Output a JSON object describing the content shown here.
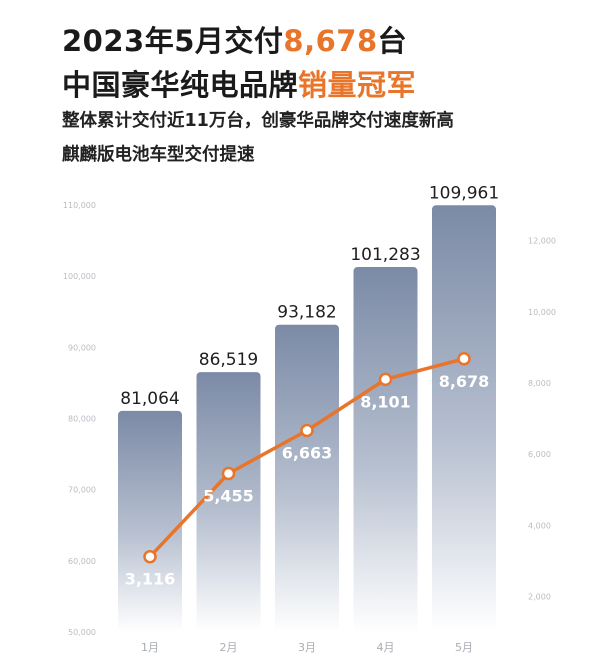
{
  "headline": {
    "line1_prefix": "2023年5月交付",
    "line1_accent": "8,678",
    "line1_suffix": "台",
    "line2_prefix": "中国豪华纯电品牌",
    "line2_accent": "销量冠军"
  },
  "subtitle": {
    "line1": "整体累计交付近11万台，创豪华品牌交付速度新高",
    "line2": "麒麟版电池车型交付提速"
  },
  "colors": {
    "accent": "#e8752a",
    "bar_top": "#7b8aa6",
    "bar_bottom": "#ffffff",
    "line": "#e8752a"
  },
  "chart_data": {
    "type": "bar",
    "categories": [
      "1月",
      "2月",
      "3月",
      "4月",
      "5月"
    ],
    "series": [
      {
        "values": [
          81064,
          86519,
          93182,
          101283,
          109961
        ],
        "labels": [
          "81,064",
          "86,519",
          "93,182",
          "101,283",
          "109,961"
        ],
        "axis": "left"
      },
      {
        "type": "line",
        "values": [
          3116,
          5455,
          6663,
          8101,
          8678
        ],
        "labels": [
          "3,116",
          "5,455",
          "6,663",
          "8,101",
          "8,678"
        ],
        "axis": "right"
      }
    ],
    "left_axis": {
      "ylim": [
        50000,
        110000
      ],
      "ticks": [
        50000,
        60000,
        70000,
        80000,
        90000,
        100000,
        110000
      ],
      "tick_labels": [
        "50,000",
        "60,000",
        "70,000",
        "80,000",
        "90,000",
        "100,000",
        "110,000"
      ]
    },
    "right_axis": {
      "ylim": [
        1000,
        13000
      ],
      "ticks": [
        2000,
        4000,
        6000,
        8000,
        10000,
        12000
      ],
      "tick_labels": [
        "2,000",
        "4,000",
        "6,000",
        "8,000",
        "10,000",
        "12,000"
      ]
    },
    "grid": false,
    "legend": "none"
  }
}
